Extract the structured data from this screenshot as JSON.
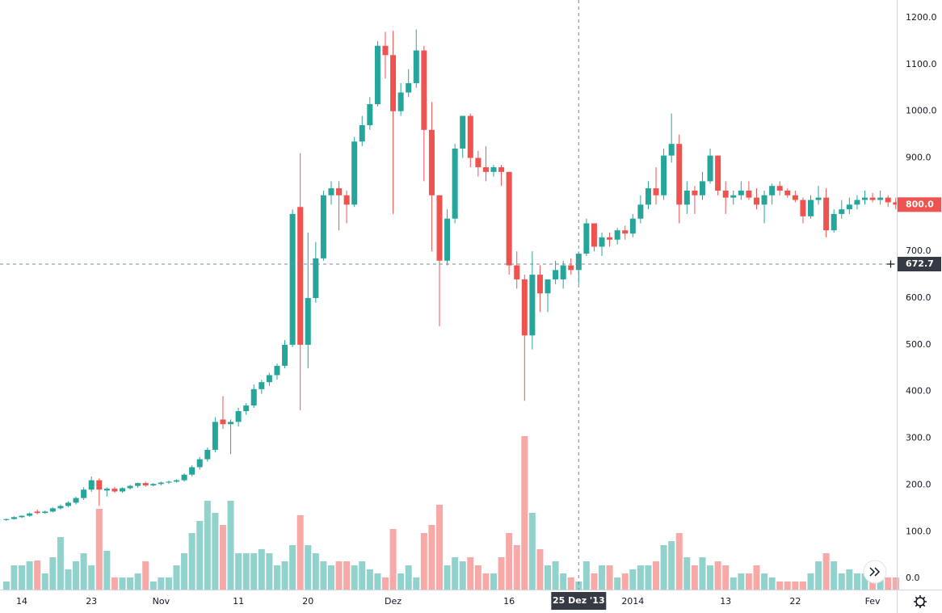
{
  "chart_data": {
    "type": "candlestick",
    "up_color": "#26a69a",
    "down_color": "#ef5350",
    "grid": true,
    "ylim": [
      -24,
      1238
    ],
    "yticks": [
      {
        "value": 0,
        "label": "0.0"
      },
      {
        "value": 100,
        "label": "100.0"
      },
      {
        "value": 200,
        "label": "200.0"
      },
      {
        "value": 300,
        "label": "300.0"
      },
      {
        "value": 400,
        "label": "400.0"
      },
      {
        "value": 500,
        "label": "500.0"
      },
      {
        "value": 600,
        "label": "600.0"
      },
      {
        "value": 700,
        "label": "700.0"
      },
      {
        "value": 800,
        "label": "800.0"
      },
      {
        "value": 900,
        "label": "900.0"
      },
      {
        "value": 1000,
        "label": "1000.0"
      },
      {
        "value": 1100,
        "label": "1100.0"
      },
      {
        "value": 1200,
        "label": "1200.0"
      }
    ],
    "last_price": {
      "value": 800,
      "label": "800.0"
    },
    "crosshair": {
      "x_label": "25 Dez '13",
      "price": 672.7
    },
    "vlim": [
      0,
      200
    ],
    "categories": [
      null,
      null,
      "14",
      null,
      null,
      null,
      null,
      null,
      null,
      null,
      null,
      "23",
      null,
      null,
      null,
      null,
      null,
      null,
      null,
      null,
      "Nov",
      null,
      null,
      null,
      null,
      null,
      null,
      null,
      null,
      null,
      "11",
      null,
      null,
      null,
      null,
      null,
      null,
      null,
      null,
      "20",
      null,
      null,
      null,
      null,
      null,
      null,
      null,
      null,
      null,
      null,
      "Dez",
      null,
      null,
      null,
      null,
      null,
      null,
      null,
      null,
      null,
      null,
      null,
      null,
      null,
      null,
      "16",
      null,
      null,
      null,
      null,
      null,
      null,
      null,
      null,
      null,
      null,
      null,
      null,
      null,
      null,
      null,
      "2014",
      null,
      null,
      null,
      null,
      null,
      null,
      null,
      null,
      null,
      null,
      null,
      "13",
      null,
      null,
      null,
      null,
      null,
      null,
      null,
      null,
      "22",
      null,
      null,
      null,
      null,
      null,
      null,
      null,
      null,
      null,
      "Fev",
      null,
      null,
      null
    ],
    "ohlc": [
      [
        125,
        128,
        123,
        127
      ],
      [
        127,
        133,
        126,
        131
      ],
      [
        131,
        135,
        129,
        134
      ],
      [
        134,
        141,
        132,
        139
      ],
      [
        143,
        147,
        137,
        140
      ],
      [
        140,
        145,
        138,
        143
      ],
      [
        143,
        152,
        141,
        150
      ],
      [
        150,
        158,
        147,
        155
      ],
      [
        155,
        165,
        152,
        162
      ],
      [
        162,
        175,
        158,
        172
      ],
      [
        172,
        195,
        168,
        190
      ],
      [
        190,
        218,
        185,
        210
      ],
      [
        210,
        214,
        155,
        190
      ],
      [
        188,
        195,
        175,
        192
      ],
      [
        192,
        196,
        183,
        186
      ],
      [
        186,
        195,
        183,
        193
      ],
      [
        193,
        200,
        190,
        198
      ],
      [
        198,
        205,
        194,
        204
      ],
      [
        204,
        207,
        196,
        199
      ],
      [
        199,
        204,
        197,
        202
      ],
      [
        202,
        207,
        199,
        205
      ],
      [
        205,
        209,
        202,
        207
      ],
      [
        207,
        212,
        205,
        210
      ],
      [
        210,
        225,
        207,
        222
      ],
      [
        222,
        242,
        218,
        238
      ],
      [
        238,
        260,
        233,
        255
      ],
      [
        255,
        280,
        250,
        275
      ],
      [
        275,
        345,
        270,
        335
      ],
      [
        340,
        390,
        320,
        330
      ],
      [
        330,
        340,
        266,
        335
      ],
      [
        335,
        365,
        325,
        358
      ],
      [
        358,
        375,
        350,
        370
      ],
      [
        370,
        415,
        365,
        405
      ],
      [
        405,
        425,
        395,
        420
      ],
      [
        420,
        440,
        412,
        435
      ],
      [
        435,
        460,
        425,
        455
      ],
      [
        455,
        510,
        450,
        500
      ],
      [
        500,
        790,
        495,
        780
      ],
      [
        795,
        910,
        360,
        500
      ],
      [
        500,
        740,
        450,
        600
      ],
      [
        600,
        720,
        590,
        685
      ],
      [
        685,
        830,
        680,
        820
      ],
      [
        820,
        850,
        800,
        835
      ],
      [
        835,
        850,
        745,
        820
      ],
      [
        820,
        830,
        760,
        800
      ],
      [
        800,
        945,
        795,
        935
      ],
      [
        935,
        990,
        925,
        970
      ],
      [
        970,
        1030,
        960,
        1015
      ],
      [
        1015,
        1150,
        1010,
        1140
      ],
      [
        1140,
        1170,
        1070,
        1120
      ],
      [
        1120,
        1172,
        780,
        1000
      ],
      [
        1000,
        1060,
        990,
        1040
      ],
      [
        1040,
        1090,
        1030,
        1060
      ],
      [
        1060,
        1175,
        1050,
        1130
      ],
      [
        1130,
        1140,
        850,
        960
      ],
      [
        960,
        1020,
        700,
        820
      ],
      [
        820,
        820,
        540,
        680
      ],
      [
        680,
        790,
        670,
        770
      ],
      [
        770,
        930,
        760,
        920
      ],
      [
        920,
        990,
        900,
        990
      ],
      [
        990,
        995,
        880,
        900
      ],
      [
        900,
        915,
        860,
        880
      ],
      [
        880,
        925,
        850,
        870
      ],
      [
        870,
        885,
        860,
        880
      ],
      [
        880,
        885,
        840,
        870
      ],
      [
        870,
        870,
        650,
        670
      ],
      [
        670,
        700,
        620,
        640
      ],
      [
        640,
        650,
        380,
        520
      ],
      [
        520,
        700,
        490,
        650
      ],
      [
        650,
        670,
        570,
        610
      ],
      [
        610,
        640,
        570,
        640
      ],
      [
        640,
        680,
        630,
        660
      ],
      [
        640,
        680,
        620,
        670
      ],
      [
        670,
        685,
        650,
        660
      ],
      [
        660,
        700,
        630,
        695
      ],
      [
        695,
        770,
        690,
        760
      ],
      [
        760,
        760,
        700,
        710
      ],
      [
        710,
        740,
        690,
        730
      ],
      [
        730,
        740,
        710,
        725
      ],
      [
        725,
        750,
        715,
        745
      ],
      [
        745,
        755,
        725,
        738
      ],
      [
        738,
        780,
        730,
        770
      ],
      [
        770,
        820,
        760,
        800
      ],
      [
        800,
        850,
        790,
        835
      ],
      [
        835,
        880,
        800,
        820
      ],
      [
        820,
        920,
        810,
        905
      ],
      [
        905,
        995,
        890,
        930
      ],
      [
        930,
        950,
        760,
        800
      ],
      [
        800,
        850,
        780,
        830
      ],
      [
        830,
        840,
        780,
        820
      ],
      [
        820,
        870,
        810,
        850
      ],
      [
        850,
        920,
        845,
        905
      ],
      [
        905,
        905,
        820,
        830
      ],
      [
        830,
        850,
        780,
        815
      ],
      [
        815,
        830,
        800,
        820
      ],
      [
        820,
        850,
        810,
        830
      ],
      [
        830,
        850,
        810,
        815
      ],
      [
        815,
        835,
        790,
        800
      ],
      [
        800,
        830,
        760,
        820
      ],
      [
        820,
        845,
        800,
        840
      ],
      [
        840,
        850,
        820,
        830
      ],
      [
        830,
        835,
        815,
        820
      ],
      [
        820,
        830,
        805,
        810
      ],
      [
        810,
        815,
        760,
        775
      ],
      [
        775,
        820,
        770,
        810
      ],
      [
        810,
        840,
        800,
        815
      ],
      [
        815,
        835,
        730,
        745
      ],
      [
        745,
        790,
        740,
        780
      ],
      [
        780,
        810,
        770,
        790
      ],
      [
        790,
        815,
        780,
        800
      ],
      [
        800,
        820,
        790,
        810
      ],
      [
        810,
        830,
        800,
        815
      ],
      [
        815,
        825,
        805,
        810
      ],
      [
        810,
        830,
        800,
        815
      ],
      [
        815,
        820,
        795,
        805
      ],
      [
        805,
        815,
        790,
        800
      ]
    ],
    "volume": [
      10,
      30,
      30,
      35,
      36,
      20,
      40,
      65,
      25,
      35,
      45,
      30,
      100,
      48,
      15,
      15,
      15,
      20,
      35,
      10,
      15,
      15,
      30,
      45,
      70,
      85,
      110,
      95,
      80,
      110,
      45,
      45,
      45,
      50,
      45,
      30,
      35,
      55,
      92,
      55,
      45,
      35,
      30,
      35,
      35,
      30,
      35,
      25,
      20,
      15,
      75,
      20,
      30,
      15,
      70,
      80,
      105,
      30,
      40,
      35,
      40,
      30,
      20,
      20,
      40,
      70,
      55,
      190,
      95,
      50,
      30,
      35,
      20,
      15,
      10,
      35,
      20,
      30,
      30,
      15,
      20,
      25,
      30,
      30,
      35,
      55,
      60,
      70,
      40,
      30,
      40,
      30,
      35,
      30,
      15,
      20,
      20,
      30,
      20,
      15,
      10,
      10,
      10,
      10,
      20,
      35,
      45,
      35,
      20,
      25,
      20,
      20,
      15,
      15,
      15,
      15
    ]
  }
}
